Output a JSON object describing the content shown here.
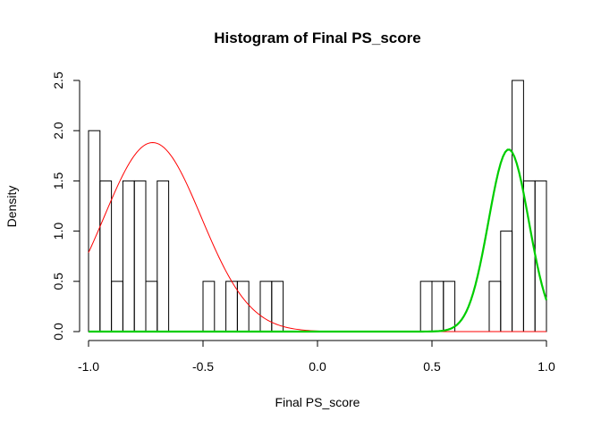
{
  "chart_data": {
    "type": "bar",
    "title": "Histogram of Final PS_score",
    "xlabel": "Final PS_score",
    "ylabel": "Density",
    "xlim": [
      -1.0,
      1.0
    ],
    "ylim": [
      0,
      2.5
    ],
    "x_ticks": [
      "-1.0",
      "-0.5",
      "0.0",
      "0.5",
      "1.0"
    ],
    "y_ticks": [
      "0.0",
      "0.5",
      "1.0",
      "1.5",
      "2.0",
      "2.5"
    ],
    "bin_width": 0.05,
    "bins": [
      {
        "start": -1.0,
        "end": -0.95,
        "density": 2.0
      },
      {
        "start": -0.95,
        "end": -0.9,
        "density": 1.5
      },
      {
        "start": -0.9,
        "end": -0.85,
        "density": 0.5
      },
      {
        "start": -0.85,
        "end": -0.8,
        "density": 1.5
      },
      {
        "start": -0.8,
        "end": -0.75,
        "density": 1.5
      },
      {
        "start": -0.75,
        "end": -0.7,
        "density": 0.5
      },
      {
        "start": -0.7,
        "end": -0.65,
        "density": 1.5
      },
      {
        "start": -0.5,
        "end": -0.45,
        "density": 0.5
      },
      {
        "start": -0.4,
        "end": -0.35,
        "density": 0.5
      },
      {
        "start": -0.35,
        "end": -0.3,
        "density": 0.5
      },
      {
        "start": -0.25,
        "end": -0.2,
        "density": 0.5
      },
      {
        "start": -0.2,
        "end": -0.15,
        "density": 0.5
      },
      {
        "start": 0.45,
        "end": 0.5,
        "density": 0.5
      },
      {
        "start": 0.5,
        "end": 0.55,
        "density": 0.5
      },
      {
        "start": 0.55,
        "end": 0.6,
        "density": 0.5
      },
      {
        "start": 0.75,
        "end": 0.8,
        "density": 0.5
      },
      {
        "start": 0.8,
        "end": 0.85,
        "density": 1.0
      },
      {
        "start": 0.85,
        "end": 0.9,
        "density": 2.5
      },
      {
        "start": 0.9,
        "end": 0.95,
        "density": 1.5
      },
      {
        "start": 0.95,
        "end": 1.0,
        "density": 1.5
      }
    ],
    "curves": [
      {
        "distribution": "normal",
        "mean": -0.72,
        "sd": 0.212,
        "color": "#ff0000",
        "stroke_weight": "thin"
      },
      {
        "distribution": "normal",
        "mean": 0.835,
        "sd": 0.088,
        "scale": 0.4,
        "color": "#00cd00",
        "stroke_weight": "thick"
      }
    ]
  }
}
